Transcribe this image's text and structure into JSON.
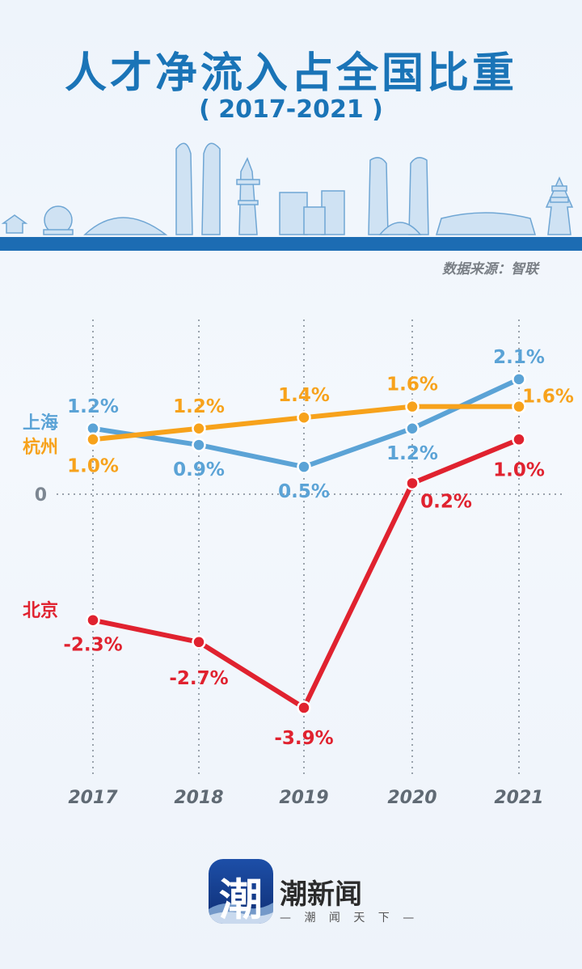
{
  "header": {
    "title": "人才净流入占全国比重",
    "subtitle": "( 2017-2021 )",
    "source": "数据来源：智联"
  },
  "chart_data": {
    "type": "line",
    "title": "人才净流入占全国比重",
    "subtitle": "( 2017-2021 )",
    "categories": [
      "2017",
      "2018",
      "2019",
      "2020",
      "2021"
    ],
    "zero_label": "0",
    "series": [
      {
        "name": "上海",
        "color": "#5ba3d6",
        "values": [
          1.2,
          0.9,
          0.5,
          1.2,
          2.1
        ],
        "labels": [
          "1.2%",
          "0.9%",
          "0.5%",
          "1.2%",
          "2.1%"
        ]
      },
      {
        "name": "杭州",
        "color": "#f7a21b",
        "values": [
          1.0,
          1.2,
          1.4,
          1.6,
          1.6
        ],
        "labels": [
          "1.0%",
          "1.2%",
          "1.4%",
          "1.6%",
          "1.6%"
        ]
      },
      {
        "name": "北京",
        "color": "#e0222f",
        "values": [
          -2.3,
          -2.7,
          -3.9,
          0.2,
          1.0
        ],
        "labels": [
          "-2.3%",
          "-2.7%",
          "-3.9%",
          "0.2%",
          "1.0%"
        ]
      }
    ],
    "grid": "vertical dotted lines",
    "ylim": [
      -4.5,
      2.4
    ]
  },
  "footer": {
    "logo_glyph": "潮",
    "brand_name": "潮新闻",
    "slogan": "— 潮 闻 天 下 —"
  }
}
